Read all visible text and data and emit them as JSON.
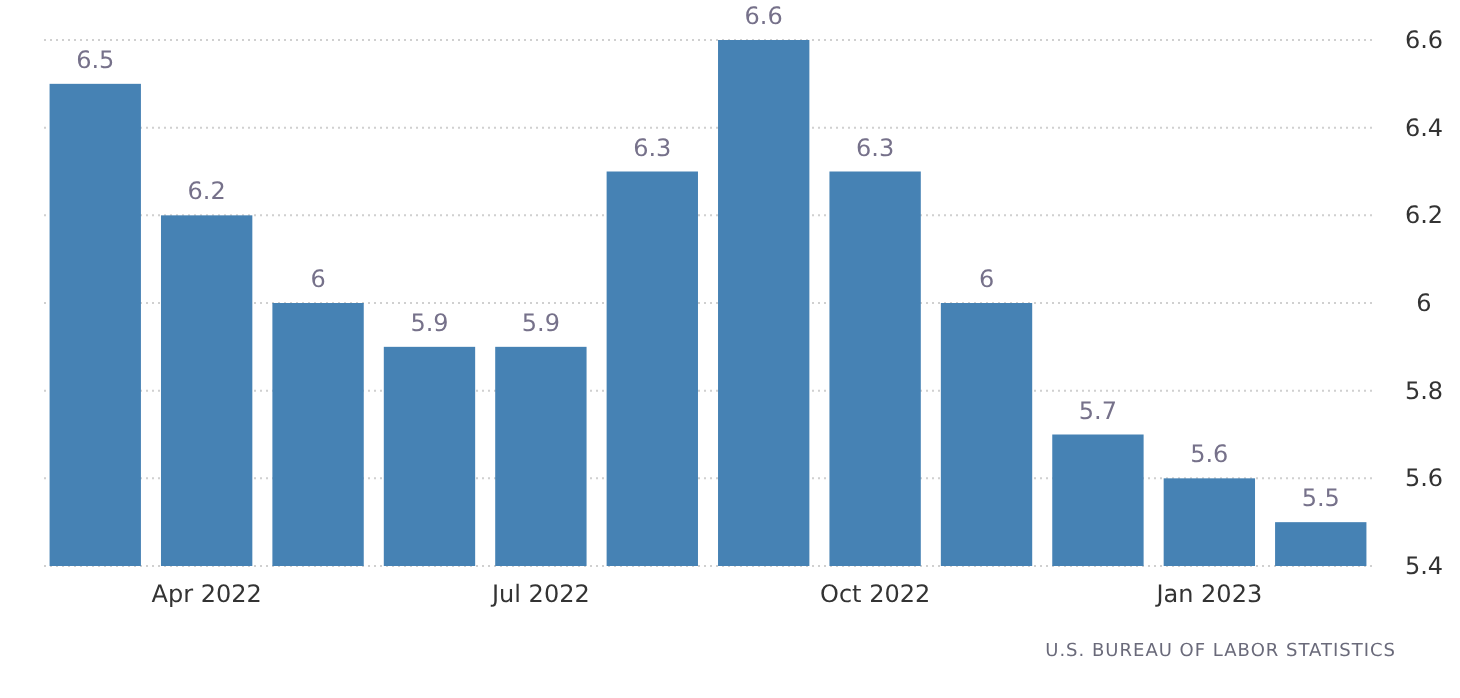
{
  "chart_data": {
    "type": "bar",
    "categories": [
      null,
      "Apr 2022",
      null,
      null,
      "Jul 2022",
      null,
      null,
      "Oct 2022",
      null,
      null,
      "Jan 2023",
      null
    ],
    "values": [
      6.5,
      6.2,
      6,
      5.9,
      5.9,
      6.3,
      6.6,
      6.3,
      6,
      5.7,
      5.6,
      5.5
    ],
    "color": "#4682b4",
    "ylim": [
      5.4,
      6.6
    ],
    "yticks": [
      5.4,
      5.6,
      5.8,
      6,
      6.2,
      6.4,
      6.6
    ],
    "grid": "y",
    "data_labels": true,
    "annotations": [
      "U.S. BUREAU OF LABOR STATISTICS"
    ]
  }
}
